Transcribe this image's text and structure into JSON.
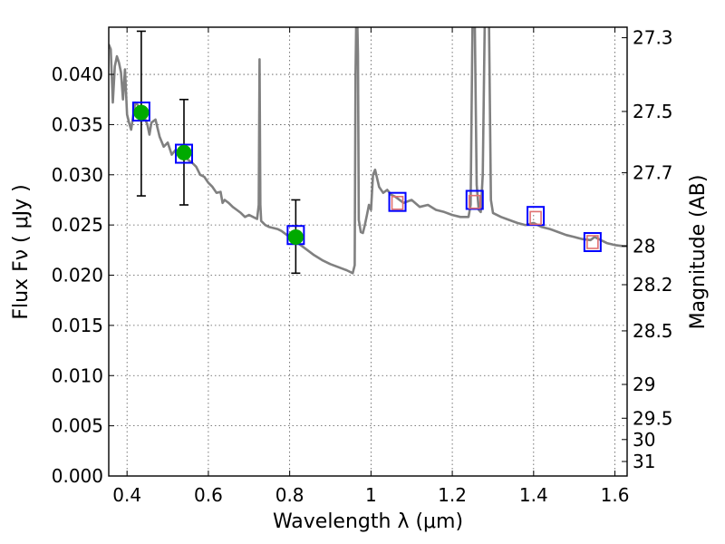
{
  "chart_data": {
    "type": "scatter",
    "xlabel": "Wavelength  λ (μm)",
    "ylabel": "Flux  Fν  ( μJy )",
    "y2label": "Magnitude (AB)",
    "xlim": [
      0.355,
      1.63
    ],
    "ylim": [
      0.0,
      0.0447
    ],
    "grid": true,
    "x_ticks": [
      "0.4",
      "0.6",
      "0.8",
      "1",
      "1.2",
      "1.4",
      "1.6"
    ],
    "x_tick_values": [
      0.4,
      0.6,
      0.8,
      1.0,
      1.2,
      1.4,
      1.6
    ],
    "y_ticks": [
      "0.000",
      "0.005",
      "0.010",
      "0.015",
      "0.020",
      "0.025",
      "0.030",
      "0.035",
      "0.040"
    ],
    "y_tick_values": [
      0.0,
      0.005,
      0.01,
      0.015,
      0.02,
      0.025,
      0.03,
      0.035,
      0.04
    ],
    "y2_ticks": [
      "27.3",
      "27.5",
      "27.7",
      "28",
      "28.2",
      "28.5",
      "29",
      "29.5",
      "30",
      "31"
    ],
    "series": [
      {
        "kind": "model-spectrum",
        "color": "#808080",
        "points": [
          [
            0.355,
            0.043
          ],
          [
            0.36,
            0.0425
          ],
          [
            0.365,
            0.0372
          ],
          [
            0.37,
            0.0408
          ],
          [
            0.375,
            0.0418
          ],
          [
            0.38,
            0.0412
          ],
          [
            0.385,
            0.0402
          ],
          [
            0.39,
            0.0375
          ],
          [
            0.395,
            0.0405
          ],
          [
            0.4,
            0.036
          ],
          [
            0.405,
            0.0352
          ],
          [
            0.41,
            0.0345
          ],
          [
            0.42,
            0.0372
          ],
          [
            0.43,
            0.0368
          ],
          [
            0.44,
            0.036
          ],
          [
            0.45,
            0.035
          ],
          [
            0.455,
            0.034
          ],
          [
            0.46,
            0.0352
          ],
          [
            0.47,
            0.0355
          ],
          [
            0.48,
            0.0338
          ],
          [
            0.49,
            0.0328
          ],
          [
            0.5,
            0.0332
          ],
          [
            0.51,
            0.032
          ],
          [
            0.52,
            0.0325
          ],
          [
            0.53,
            0.0318
          ],
          [
            0.54,
            0.0322
          ],
          [
            0.55,
            0.0315
          ],
          [
            0.56,
            0.0312
          ],
          [
            0.57,
            0.0308
          ],
          [
            0.58,
            0.03
          ],
          [
            0.59,
            0.0298
          ],
          [
            0.6,
            0.0292
          ],
          [
            0.61,
            0.0288
          ],
          [
            0.62,
            0.0282
          ],
          [
            0.63,
            0.0283
          ],
          [
            0.635,
            0.0272
          ],
          [
            0.64,
            0.0275
          ],
          [
            0.65,
            0.0272
          ],
          [
            0.66,
            0.0268
          ],
          [
            0.67,
            0.0265
          ],
          [
            0.68,
            0.0262
          ],
          [
            0.69,
            0.0258
          ],
          [
            0.7,
            0.026
          ],
          [
            0.71,
            0.0258
          ],
          [
            0.72,
            0.0256
          ],
          [
            0.724,
            0.027
          ],
          [
            0.726,
            0.0415
          ],
          [
            0.728,
            0.027
          ],
          [
            0.73,
            0.0254
          ],
          [
            0.74,
            0.025
          ],
          [
            0.75,
            0.0248
          ],
          [
            0.76,
            0.0247
          ],
          [
            0.77,
            0.0246
          ],
          [
            0.78,
            0.0244
          ],
          [
            0.8,
            0.0238
          ],
          [
            0.82,
            0.0232
          ],
          [
            0.84,
            0.0226
          ],
          [
            0.86,
            0.022
          ],
          [
            0.88,
            0.0215
          ],
          [
            0.9,
            0.0211
          ],
          [
            0.92,
            0.0208
          ],
          [
            0.94,
            0.0205
          ],
          [
            0.955,
            0.0202
          ],
          [
            0.96,
            0.021
          ],
          [
            0.962,
            0.04
          ],
          [
            0.964,
            0.046
          ],
          [
            0.966,
            0.046
          ],
          [
            0.968,
            0.042
          ],
          [
            0.97,
            0.0255
          ],
          [
            0.975,
            0.0243
          ],
          [
            0.98,
            0.0242
          ],
          [
            0.985,
            0.025
          ],
          [
            0.99,
            0.026
          ],
          [
            0.995,
            0.027
          ],
          [
            1.0,
            0.0265
          ],
          [
            1.005,
            0.03
          ],
          [
            1.01,
            0.0305
          ],
          [
            1.02,
            0.0288
          ],
          [
            1.03,
            0.0282
          ],
          [
            1.04,
            0.0285
          ],
          [
            1.05,
            0.028
          ],
          [
            1.06,
            0.0278
          ],
          [
            1.08,
            0.0272
          ],
          [
            1.1,
            0.0275
          ],
          [
            1.12,
            0.0268
          ],
          [
            1.14,
            0.027
          ],
          [
            1.16,
            0.0265
          ],
          [
            1.18,
            0.0263
          ],
          [
            1.2,
            0.026
          ],
          [
            1.22,
            0.0258
          ],
          [
            1.24,
            0.0258
          ],
          [
            1.245,
            0.027
          ],
          [
            1.25,
            0.046
          ],
          [
            1.255,
            0.046
          ],
          [
            1.26,
            0.029
          ],
          [
            1.265,
            0.0265
          ],
          [
            1.27,
            0.0263
          ],
          [
            1.275,
            0.03
          ],
          [
            1.28,
            0.046
          ],
          [
            1.29,
            0.046
          ],
          [
            1.295,
            0.0275
          ],
          [
            1.3,
            0.0262
          ],
          [
            1.32,
            0.0258
          ],
          [
            1.34,
            0.0255
          ],
          [
            1.36,
            0.0252
          ],
          [
            1.38,
            0.025
          ],
          [
            1.4,
            0.0252
          ],
          [
            1.42,
            0.0248
          ],
          [
            1.44,
            0.0246
          ],
          [
            1.46,
            0.0243
          ],
          [
            1.48,
            0.024
          ],
          [
            1.5,
            0.0238
          ],
          [
            1.52,
            0.0236
          ],
          [
            1.54,
            0.0235
          ],
          [
            1.55,
            0.0238
          ],
          [
            1.56,
            0.0236
          ],
          [
            1.58,
            0.0232
          ],
          [
            1.6,
            0.023
          ],
          [
            1.62,
            0.0229
          ],
          [
            1.63,
            0.0229
          ]
        ]
      },
      {
        "kind": "observed-detections",
        "marker": "circle",
        "color": "#00aa00",
        "x": [
          0.435,
          0.54,
          0.815
        ],
        "y": [
          0.0362,
          0.0322,
          0.0238
        ],
        "yerr_low": [
          0.0279,
          0.027,
          0.0202
        ],
        "yerr_high": [
          0.0443,
          0.0375,
          0.0275
        ]
      },
      {
        "kind": "model-bandpass-flux",
        "marker": "square",
        "color": "#0000ff",
        "x": [
          0.435,
          0.54,
          0.815,
          1.065,
          1.255,
          1.405,
          1.545
        ],
        "y": [
          0.0363,
          0.0321,
          0.024,
          0.0273,
          0.0275,
          0.0259,
          0.0233
        ]
      },
      {
        "kind": "upper-limits",
        "marker": "open-square",
        "color": "#e07070",
        "x": [
          1.065,
          1.255,
          1.405,
          1.545
        ],
        "y": [
          0.0272,
          0.0273,
          0.0257,
          0.0233
        ]
      }
    ]
  }
}
